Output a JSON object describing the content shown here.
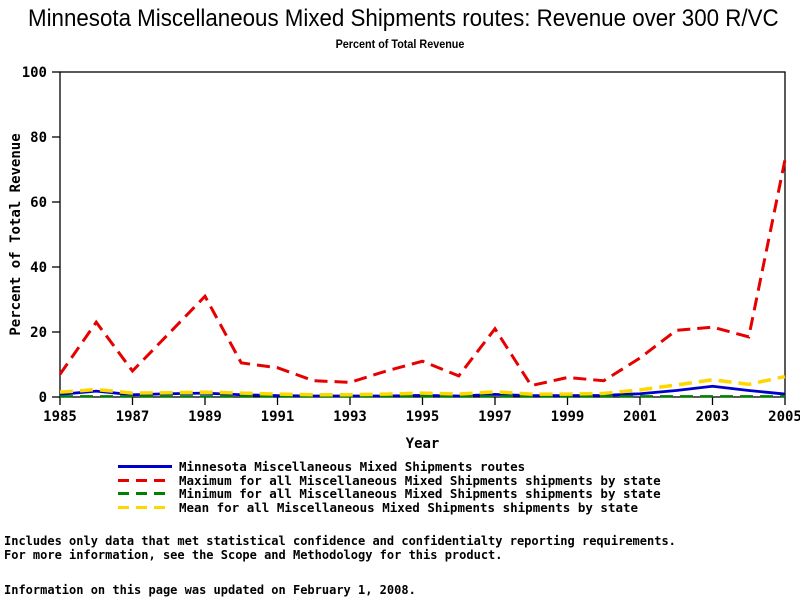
{
  "title": "Minnesota Miscellaneous Mixed Shipments routes: Revenue over 300 R/VC",
  "subtitle": "Percent of Total Revenue",
  "chart_data": {
    "type": "line",
    "x": [
      1985,
      1986,
      1987,
      1988,
      1989,
      1990,
      1991,
      1992,
      1993,
      1994,
      1995,
      1996,
      1997,
      1998,
      1999,
      2000,
      2001,
      2002,
      2003,
      2004,
      2005
    ],
    "series": [
      {
        "name": "Minnesota Miscellaneous Mixed Shipments routes",
        "color": "#0000cc",
        "style": "solid",
        "width": 2.8,
        "values": [
          0.8,
          1.8,
          0.7,
          1.0,
          1.2,
          0.7,
          0.4,
          0.3,
          0.3,
          0.3,
          0.5,
          0.3,
          0.8,
          0.4,
          0.4,
          0.5,
          1.0,
          2.0,
          3.3,
          2.0,
          0.9
        ]
      },
      {
        "name": "Maximum for all Miscellaneous Mixed Shipments shipments by state",
        "color": "#e60000",
        "style": "dashed",
        "width": 3,
        "values": [
          7,
          23,
          8,
          19.5,
          31,
          10.5,
          9,
          5,
          4.5,
          8,
          11,
          6.5,
          21,
          3.5,
          6,
          5,
          12,
          20.5,
          21.5,
          18.5,
          73
        ]
      },
      {
        "name": "Minimum for all Miscellaneous Mixed Shipments shipments by state",
        "color": "#008000",
        "style": "dashed",
        "width": 2.5,
        "values": [
          0.2,
          0.2,
          0.2,
          0.2,
          0.2,
          0.2,
          0.2,
          0.2,
          0.2,
          0.2,
          0.2,
          0.2,
          0.2,
          0.2,
          0.2,
          0.2,
          0.2,
          0.2,
          0.2,
          0.2,
          0.2
        ]
      },
      {
        "name": "Mean for all Miscellaneous Mixed Shipments shipments by state",
        "color": "#ffd700",
        "style": "dashed",
        "width": 3.5,
        "values": [
          1.5,
          2.3,
          1.2,
          1.3,
          1.5,
          1.2,
          0.9,
          0.7,
          0.7,
          0.9,
          1.2,
          0.9,
          1.6,
          0.9,
          0.9,
          1.1,
          2.2,
          3.7,
          5.3,
          3.9,
          6.3
        ]
      }
    ],
    "xlabel": "Year",
    "ylabel": "Percent of Total Revenue",
    "ylim": [
      0,
      100
    ],
    "yticks": [
      0,
      20,
      40,
      60,
      80,
      100
    ],
    "xticks": [
      1985,
      1987,
      1989,
      1991,
      1993,
      1995,
      1997,
      1999,
      2001,
      2003,
      2005
    ],
    "grid": false,
    "legend_position": "bottom"
  },
  "footer": {
    "line1": "Includes only data that met statistical confidence and confidentialty reporting requirements.",
    "line2": "For more information, see the Scope and Methodology for this product.",
    "updated": "Information on this page was updated on February 1, 2008."
  }
}
